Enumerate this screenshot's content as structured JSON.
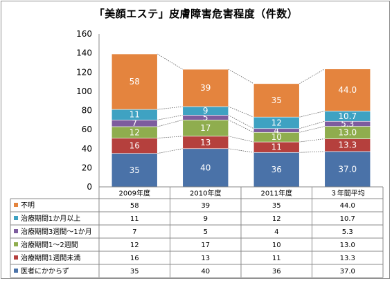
{
  "chart_data": {
    "type": "bar",
    "stacked": true,
    "title": "「美顔エステ」皮膚障害危害程度（件数）",
    "categories": [
      "2009年度",
      "2010年度",
      "2011年度",
      "３年間平均"
    ],
    "ylim": [
      0,
      160
    ],
    "yticks": [
      0,
      20,
      40,
      60,
      80,
      100,
      120,
      140,
      160
    ],
    "grid": false,
    "legend": "data-table",
    "series": [
      {
        "name": "医者にかからず",
        "color": "#4a72a8",
        "values": [
          35,
          40,
          36,
          37.0
        ],
        "labels": [
          "35",
          "40",
          "36",
          "37.0"
        ]
      },
      {
        "name": "治療期間1週間未満",
        "color": "#b5403d",
        "values": [
          16,
          13,
          11,
          13.3
        ],
        "labels": [
          "16",
          "13",
          "11",
          "13.3"
        ]
      },
      {
        "name": "治療期間1～2週間",
        "color": "#8fad4e",
        "values": [
          12,
          17,
          10,
          13.0
        ],
        "labels": [
          "12",
          "17",
          "10",
          "13.0"
        ]
      },
      {
        "name": "治療期間3週間～1か月",
        "color": "#7d5c9e",
        "values": [
          7,
          5,
          4,
          5.3
        ],
        "labels": [
          "7",
          "5",
          "4",
          "5.3"
        ]
      },
      {
        "name": "治療期間1か月以上",
        "color": "#3fa2c2",
        "values": [
          11,
          9,
          12,
          10.7
        ],
        "labels": [
          "11",
          "9",
          "12",
          "10.7"
        ]
      },
      {
        "name": "不明",
        "color": "#e4843e",
        "values": [
          58,
          39,
          35,
          44.0
        ],
        "labels": [
          "58",
          "39",
          "35",
          "44.0"
        ]
      }
    ],
    "table_rows": [
      "不明",
      "治療期間1か月以上",
      "治療期間3週間～1か月",
      "治療期間1～2週間",
      "治療期間1週間未満",
      "医者にかからず"
    ]
  }
}
